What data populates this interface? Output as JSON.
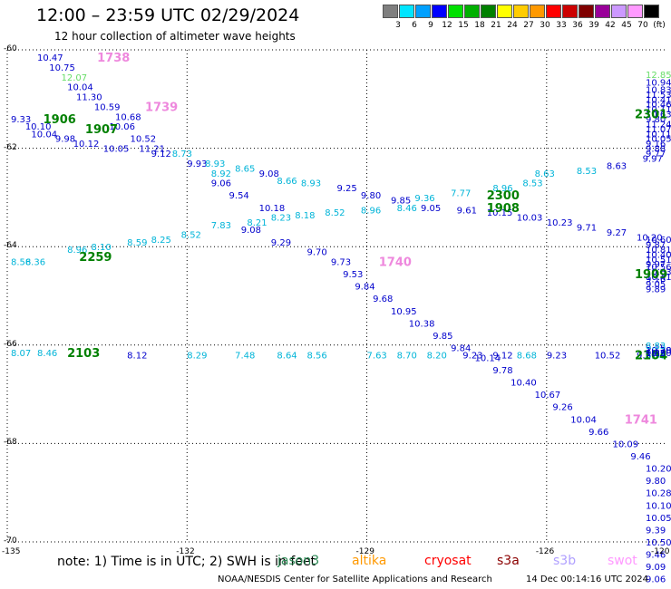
{
  "title": "12:00 – 23:59 UTC 02/29/2024",
  "subtitle": "12 hour collection of altimeter wave heights",
  "legend": {
    "unit": "(ft)",
    "items": [
      {
        "label": "3",
        "color": "#7f7f7f"
      },
      {
        "label": "6",
        "color": "#00e5ff"
      },
      {
        "label": "9",
        "color": "#00a0ff"
      },
      {
        "label": "12",
        "color": "#0000ff"
      },
      {
        "label": "15",
        "color": "#00e000"
      },
      {
        "label": "18",
        "color": "#00b000"
      },
      {
        "label": "21",
        "color": "#008000"
      },
      {
        "label": "24",
        "color": "#ffff00"
      },
      {
        "label": "27",
        "color": "#ffcc00"
      },
      {
        "label": "30",
        "color": "#ff9900"
      },
      {
        "label": "33",
        "color": "#ff0000"
      },
      {
        "label": "36",
        "color": "#cc0000"
      },
      {
        "label": "39",
        "color": "#800000"
      },
      {
        "label": "42",
        "color": "#990099"
      },
      {
        "label": "45",
        "color": "#cc99ff"
      },
      {
        "label": "70",
        "color": "#ff99ff"
      },
      {
        "label": "",
        "color": "#000000"
      }
    ]
  },
  "note": "note: 1) Time is in UTC; 2) SWH is in feet",
  "satellites": [
    {
      "name": "jason3",
      "color": "#2e8b57"
    },
    {
      "name": "altika",
      "color": "#ff9900"
    },
    {
      "name": "cryosat",
      "color": "#ff0000"
    },
    {
      "name": "s3a",
      "color": "#8b0000"
    },
    {
      "name": "s3b",
      "color": "#b0a0ff"
    },
    {
      "name": "swot",
      "color": "#ff99ff"
    }
  ],
  "credit": "NOAA/NESDIS Center for Satellite Applications and Research",
  "timestamp": "14 Dec 00:14:16 UTC 2024",
  "chart_data": {
    "type": "scatter",
    "xlim": [
      -135,
      -124
    ],
    "ylim": [
      -70,
      -60
    ],
    "x_ticks": [
      "-135",
      "-132",
      "-129",
      "-126",
      "-123",
      "-120"
    ],
    "y_ticks": [
      "-60",
      "-62",
      "-64",
      "-66",
      "-68",
      "-70"
    ],
    "grid": true,
    "colors": {
      "c": "#00b4d8",
      "b": "#0000cc",
      "g": "#008000",
      "lg": "#66dd66",
      "p": "#ee88dd"
    },
    "points": [
      {
        "lon": -134.5,
        "lat": -60.15,
        "text": "10.47",
        "c": "b"
      },
      {
        "lon": -133.5,
        "lat": -60.15,
        "text": "1738",
        "c": "p",
        "big": true
      },
      {
        "lon": -134.3,
        "lat": -60.35,
        "text": "10.75",
        "c": "b"
      },
      {
        "lon": -134.1,
        "lat": -60.55,
        "text": "12.07",
        "c": "lg"
      },
      {
        "lon": -134.0,
        "lat": -60.75,
        "text": "10.04",
        "c": "b"
      },
      {
        "lon": -133.85,
        "lat": -60.95,
        "text": "11.30",
        "c": "b"
      },
      {
        "lon": -133.55,
        "lat": -61.15,
        "text": "10.59",
        "c": "b"
      },
      {
        "lon": -132.7,
        "lat": -61.15,
        "text": "1739",
        "c": "p",
        "big": true
      },
      {
        "lon": -133.2,
        "lat": -61.35,
        "text": "10.68",
        "c": "b"
      },
      {
        "lon": -135.0,
        "lat": -61.4,
        "text": "9.33",
        "c": "b"
      },
      {
        "lon": -134.4,
        "lat": -61.4,
        "text": "1906",
        "c": "g",
        "big": true
      },
      {
        "lon": -134.7,
        "lat": -61.55,
        "text": "10.10",
        "c": "b"
      },
      {
        "lon": -133.3,
        "lat": -61.55,
        "text": "10.06",
        "c": "b"
      },
      {
        "lon": -134.6,
        "lat": -61.7,
        "text": "10.04",
        "c": "b"
      },
      {
        "lon": -133.7,
        "lat": -61.6,
        "text": "1907",
        "c": "g",
        "big": true
      },
      {
        "lon": -134.2,
        "lat": -61.8,
        "text": "9.98",
        "c": "b"
      },
      {
        "lon": -132.95,
        "lat": -61.8,
        "text": "10.52",
        "c": "b"
      },
      {
        "lon": -133.9,
        "lat": -61.9,
        "text": "10.12",
        "c": "b"
      },
      {
        "lon": -133.4,
        "lat": -62.0,
        "text": "10.05",
        "c": "b"
      },
      {
        "lon": -132.8,
        "lat": -62.0,
        "text": "11.21",
        "c": "b"
      },
      {
        "lon": -132.6,
        "lat": -62.1,
        "text": "9.12",
        "c": "b"
      },
      {
        "lon": -132.25,
        "lat": -62.1,
        "text": "8.73",
        "c": "c"
      },
      {
        "lon": -132.0,
        "lat": -62.3,
        "text": "9.93",
        "c": "b"
      },
      {
        "lon": -131.7,
        "lat": -62.3,
        "text": "8.93",
        "c": "c"
      },
      {
        "lon": -131.2,
        "lat": -62.4,
        "text": "8.65",
        "c": "c"
      },
      {
        "lon": -131.6,
        "lat": -62.5,
        "text": "8.92",
        "c": "c"
      },
      {
        "lon": -130.8,
        "lat": -62.5,
        "text": "9.08",
        "c": "b"
      },
      {
        "lon": -130.5,
        "lat": -62.65,
        "text": "8.66",
        "c": "c"
      },
      {
        "lon": -131.6,
        "lat": -62.7,
        "text": "9.06",
        "c": "b"
      },
      {
        "lon": -130.1,
        "lat": -62.7,
        "text": "8.93",
        "c": "c"
      },
      {
        "lon": -129.5,
        "lat": -62.8,
        "text": "9.25",
        "c": "b"
      },
      {
        "lon": -131.3,
        "lat": -62.95,
        "text": "9.54",
        "c": "b"
      },
      {
        "lon": -129.1,
        "lat": -62.95,
        "text": "9.80",
        "c": "b"
      },
      {
        "lon": -128.6,
        "lat": -63.05,
        "text": "9.85",
        "c": "b"
      },
      {
        "lon": -128.2,
        "lat": -63.0,
        "text": "9.36",
        "c": "c"
      },
      {
        "lon": -127.6,
        "lat": -62.9,
        "text": "7.77",
        "c": "c"
      },
      {
        "lon": -126.9,
        "lat": -62.8,
        "text": "8.96",
        "c": "c"
      },
      {
        "lon": -126.4,
        "lat": -62.7,
        "text": "8.53",
        "c": "c"
      },
      {
        "lon": -127.0,
        "lat": -62.95,
        "text": "2300",
        "c": "g",
        "big": true
      },
      {
        "lon": -126.2,
        "lat": -62.5,
        "text": "8.63",
        "c": "c"
      },
      {
        "lon": -125.5,
        "lat": -62.45,
        "text": "8.53",
        "c": "c"
      },
      {
        "lon": -125.0,
        "lat": -62.35,
        "text": "8.63",
        "c": "b"
      },
      {
        "lon": -124.4,
        "lat": -62.2,
        "text": "9.97",
        "c": "b"
      },
      {
        "lon": -123.8,
        "lat": -62.1,
        "text": "9.77",
        "c": "b"
      },
      {
        "lon": -123.2,
        "lat": -62.0,
        "text": "9.88",
        "c": "b"
      },
      {
        "lon": -122.7,
        "lat": -61.9,
        "text": "9.16",
        "c": "b"
      },
      {
        "lon": -122.1,
        "lat": -61.8,
        "text": "10.05",
        "c": "b"
      },
      {
        "lon": -121.6,
        "lat": -61.7,
        "text": "10.11",
        "c": "b"
      },
      {
        "lon": -121.2,
        "lat": -61.6,
        "text": "11.07",
        "c": "b"
      },
      {
        "lon": -120.7,
        "lat": -61.5,
        "text": "11.24",
        "c": "b"
      },
      {
        "lon": -120.2,
        "lat": -61.4,
        "text": "9.80",
        "c": "b"
      },
      {
        "lon": -119.8,
        "lat": -61.3,
        "text": "10.63",
        "c": "b"
      },
      {
        "lon": -119.3,
        "lat": -61.2,
        "text": "10.11",
        "c": "b"
      },
      {
        "lon": -118.9,
        "lat": -61.1,
        "text": "10.46",
        "c": "b"
      },
      {
        "lon": -118.4,
        "lat": -61.0,
        "text": "10.41",
        "c": "b"
      },
      {
        "lon": -117.9,
        "lat": -60.9,
        "text": "11.53",
        "c": "b"
      },
      {
        "lon": -117.4,
        "lat": -60.8,
        "text": "10.83",
        "c": "b"
      },
      {
        "lon": -116.8,
        "lat": -60.65,
        "text": "10.94",
        "c": "b"
      },
      {
        "lon": -116.2,
        "lat": -60.5,
        "text": "12.85",
        "c": "lg"
      },
      {
        "lon": -118.3,
        "lat": -61.3,
        "text": "2301",
        "c": "g",
        "big": true
      },
      {
        "lon": -130.8,
        "lat": -63.2,
        "text": "10.18",
        "c": "b"
      },
      {
        "lon": -130.6,
        "lat": -63.4,
        "text": "8.23",
        "c": "c"
      },
      {
        "lon": -130.2,
        "lat": -63.35,
        "text": "8.18",
        "c": "c"
      },
      {
        "lon": -129.7,
        "lat": -63.3,
        "text": "8.52",
        "c": "c"
      },
      {
        "lon": -129.1,
        "lat": -63.25,
        "text": "8.96",
        "c": "c"
      },
      {
        "lon": -128.5,
        "lat": -63.2,
        "text": "8.46",
        "c": "c"
      },
      {
        "lon": -128.1,
        "lat": -63.2,
        "text": "9.05",
        "c": "b"
      },
      {
        "lon": -127.5,
        "lat": -63.25,
        "text": "9.61",
        "c": "b"
      },
      {
        "lon": -127.0,
        "lat": -63.3,
        "text": "10.15",
        "c": "b"
      },
      {
        "lon": -126.5,
        "lat": -63.4,
        "text": "10.03",
        "c": "b"
      },
      {
        "lon": -127.0,
        "lat": -63.2,
        "text": "1908",
        "c": "g",
        "big": true
      },
      {
        "lon": -126.0,
        "lat": -63.5,
        "text": "10.23",
        "c": "b"
      },
      {
        "lon": -125.5,
        "lat": -63.6,
        "text": "9.71",
        "c": "b"
      },
      {
        "lon": -125.0,
        "lat": -63.7,
        "text": "9.27",
        "c": "b"
      },
      {
        "lon": -124.5,
        "lat": -63.8,
        "text": "10.20",
        "c": "b"
      },
      {
        "lon": -123.9,
        "lat": -63.85,
        "text": "10.60",
        "c": "b"
      },
      {
        "lon": -123.4,
        "lat": -63.95,
        "text": "9.87",
        "c": "b"
      },
      {
        "lon": -122.8,
        "lat": -64.05,
        "text": "10.81",
        "c": "b"
      },
      {
        "lon": -122.2,
        "lat": -64.15,
        "text": "10.40",
        "c": "b"
      },
      {
        "lon": -121.7,
        "lat": -64.25,
        "text": "10.51",
        "c": "b"
      },
      {
        "lon": -121.2,
        "lat": -64.35,
        "text": "9.97",
        "c": "b"
      },
      {
        "lon": -120.7,
        "lat": -64.4,
        "text": "10.56",
        "c": "b"
      },
      {
        "lon": -120.2,
        "lat": -64.5,
        "text": "10.63",
        "c": "b"
      },
      {
        "lon": -119.7,
        "lat": -64.6,
        "text": "10.41",
        "c": "b"
      },
      {
        "lon": -119.2,
        "lat": -64.65,
        "text": "9.16",
        "c": "b"
      },
      {
        "lon": -118.7,
        "lat": -64.75,
        "text": "9.05",
        "c": "b"
      },
      {
        "lon": -118.1,
        "lat": -64.85,
        "text": "9.89",
        "c": "b"
      },
      {
        "lon": -118.5,
        "lat": -64.55,
        "text": "1909",
        "c": "g",
        "big": true
      },
      {
        "lon": -131.6,
        "lat": -63.55,
        "text": "7.83",
        "c": "c"
      },
      {
        "lon": -131.0,
        "lat": -63.5,
        "text": "8.21",
        "c": "c"
      },
      {
        "lon": -131.1,
        "lat": -63.65,
        "text": "9.08",
        "c": "b"
      },
      {
        "lon": -132.1,
        "lat": -63.75,
        "text": "8.52",
        "c": "c"
      },
      {
        "lon": -132.6,
        "lat": -63.85,
        "text": "8.25",
        "c": "c"
      },
      {
        "lon": -133.0,
        "lat": -63.9,
        "text": "8.59",
        "c": "c"
      },
      {
        "lon": -133.6,
        "lat": -64.0,
        "text": "8.10",
        "c": "c"
      },
      {
        "lon": -134.0,
        "lat": -64.05,
        "text": "8.96",
        "c": "c"
      },
      {
        "lon": -134.7,
        "lat": -64.3,
        "text": "8.36",
        "c": "c"
      },
      {
        "lon": -135.0,
        "lat": -64.3,
        "text": "8.56",
        "c": "c"
      },
      {
        "lon": -133.8,
        "lat": -64.2,
        "text": "2259",
        "c": "g",
        "big": true
      },
      {
        "lon": -130.6,
        "lat": -63.9,
        "text": "9.29",
        "c": "b"
      },
      {
        "lon": -130.0,
        "lat": -64.1,
        "text": "9.70",
        "c": "b"
      },
      {
        "lon": -129.6,
        "lat": -64.3,
        "text": "9.73",
        "c": "b"
      },
      {
        "lon": -128.8,
        "lat": -64.3,
        "text": "1740",
        "c": "p",
        "big": true
      },
      {
        "lon": -129.4,
        "lat": -64.55,
        "text": "9.53",
        "c": "b"
      },
      {
        "lon": -129.2,
        "lat": -64.8,
        "text": "9.84",
        "c": "b"
      },
      {
        "lon": -128.9,
        "lat": -65.05,
        "text": "9.68",
        "c": "b"
      },
      {
        "lon": -128.6,
        "lat": -65.3,
        "text": "10.95",
        "c": "b"
      },
      {
        "lon": -128.3,
        "lat": -65.55,
        "text": "10.38",
        "c": "b"
      },
      {
        "lon": -127.9,
        "lat": -65.8,
        "text": "9.85",
        "c": "b"
      },
      {
        "lon": -127.6,
        "lat": -66.05,
        "text": "9.84",
        "c": "b"
      },
      {
        "lon": -127.2,
        "lat": -66.25,
        "text": "10.14",
        "c": "b"
      },
      {
        "lon": -126.9,
        "lat": -66.5,
        "text": "9.78",
        "c": "b"
      },
      {
        "lon": -126.6,
        "lat": -66.75,
        "text": "10.40",
        "c": "b"
      },
      {
        "lon": -126.2,
        "lat": -67.0,
        "text": "10.67",
        "c": "b"
      },
      {
        "lon": -125.9,
        "lat": -67.25,
        "text": "9.26",
        "c": "b"
      },
      {
        "lon": -125.6,
        "lat": -67.5,
        "text": "10.04",
        "c": "b"
      },
      {
        "lon": -124.7,
        "lat": -67.5,
        "text": "1741",
        "c": "p",
        "big": true
      },
      {
        "lon": -125.3,
        "lat": -67.75,
        "text": "9.66",
        "c": "b"
      },
      {
        "lon": -124.9,
        "lat": -68.0,
        "text": "10.09",
        "c": "b"
      },
      {
        "lon": -124.6,
        "lat": -68.25,
        "text": "9.46",
        "c": "b"
      },
      {
        "lon": -124.2,
        "lat": -68.5,
        "text": "10.20",
        "c": "b"
      },
      {
        "lon": -123.9,
        "lat": -68.75,
        "text": "9.80",
        "c": "b"
      },
      {
        "lon": -123.6,
        "lat": -69.0,
        "text": "10.28",
        "c": "b"
      },
      {
        "lon": -123.2,
        "lat": -69.25,
        "text": "10.10",
        "c": "b"
      },
      {
        "lon": -122.9,
        "lat": -69.5,
        "text": "10.05",
        "c": "b"
      },
      {
        "lon": -122.5,
        "lat": -69.75,
        "text": "9.39",
        "c": "b"
      },
      {
        "lon": -122.2,
        "lat": -70.0,
        "text": "10.50",
        "c": "b"
      },
      {
        "lon": -121.8,
        "lat": -70.25,
        "text": "9.46",
        "c": "b"
      },
      {
        "lon": -121.5,
        "lat": -70.5,
        "text": "9.09",
        "c": "b"
      },
      {
        "lon": -121.1,
        "lat": -70.75,
        "text": "9.06",
        "c": "b"
      },
      {
        "lon": -135.0,
        "lat": -66.15,
        "text": "8.07",
        "c": "c"
      },
      {
        "lon": -134.5,
        "lat": -66.15,
        "text": "8.46",
        "c": "c"
      },
      {
        "lon": -134.0,
        "lat": -66.15,
        "text": "2103",
        "c": "g",
        "big": true
      },
      {
        "lon": -133.0,
        "lat": -66.2,
        "text": "8.12",
        "c": "b"
      },
      {
        "lon": -132.0,
        "lat": -66.2,
        "text": "8.29",
        "c": "c"
      },
      {
        "lon": -131.2,
        "lat": -66.2,
        "text": "7.48",
        "c": "c"
      },
      {
        "lon": -130.5,
        "lat": -66.2,
        "text": "8.64",
        "c": "c"
      },
      {
        "lon": -130.0,
        "lat": -66.2,
        "text": "8.56",
        "c": "c"
      },
      {
        "lon": -129.0,
        "lat": -66.2,
        "text": "7.63",
        "c": "c"
      },
      {
        "lon": -128.5,
        "lat": -66.2,
        "text": "8.70",
        "c": "c"
      },
      {
        "lon": -128.0,
        "lat": -66.2,
        "text": "8.20",
        "c": "c"
      },
      {
        "lon": -127.4,
        "lat": -66.2,
        "text": "9.23",
        "c": "b"
      },
      {
        "lon": -126.9,
        "lat": -66.2,
        "text": "9.12",
        "c": "b"
      },
      {
        "lon": -126.5,
        "lat": -66.2,
        "text": "8.68",
        "c": "c"
      },
      {
        "lon": -126.0,
        "lat": -66.2,
        "text": "9.23",
        "c": "b"
      },
      {
        "lon": -125.2,
        "lat": -66.2,
        "text": "10.52",
        "c": "b"
      },
      {
        "lon": -124.5,
        "lat": -66.2,
        "text": "9.51",
        "c": "b"
      },
      {
        "lon": -123.8,
        "lat": -66.2,
        "text": "8.97",
        "c": "c"
      },
      {
        "lon": -123.3,
        "lat": -66.2,
        "text": "8.58",
        "c": "c"
      },
      {
        "lon": -122.9,
        "lat": -66.2,
        "text": "2104",
        "c": "g",
        "big": true
      },
      {
        "lon": -121.8,
        "lat": -66.15,
        "text": "9.85",
        "c": "b"
      },
      {
        "lon": -121.2,
        "lat": -66.15,
        "text": "10.20",
        "c": "b"
      },
      {
        "lon": -120.6,
        "lat": -66.1,
        "text": "10.30",
        "c": "b"
      },
      {
        "lon": -120.0,
        "lat": -66.1,
        "text": "10.78",
        "c": "b"
      },
      {
        "lon": -119.5,
        "lat": -66.05,
        "text": "9.15",
        "c": "b"
      },
      {
        "lon": -118.9,
        "lat": -66.0,
        "text": "8.83",
        "c": "c"
      }
    ]
  }
}
